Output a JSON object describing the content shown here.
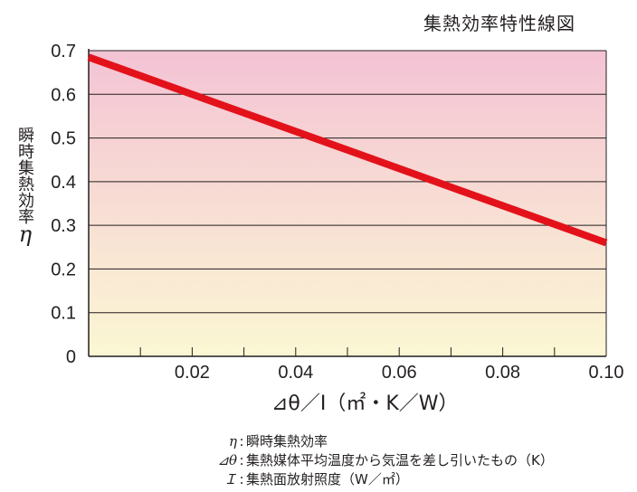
{
  "chart_data": {
    "type": "line",
    "title": "集熱効率特性線図",
    "xlabel": "⊿θ／I（㎡・K／W）",
    "ylabel_chars": "瞬時集熱効率",
    "ylabel_symbol": "η",
    "xlim": [
      0,
      0.1
    ],
    "ylim": [
      0,
      0.7
    ],
    "x_ticks": [
      "0.02",
      "0.04",
      "0.06",
      "0.08",
      "0.10"
    ],
    "y_ticks": [
      "0",
      "0.1",
      "0.2",
      "0.3",
      "0.4",
      "0.5",
      "0.6",
      "0.7"
    ],
    "grid": true,
    "series": [
      {
        "x": [
          0,
          0.1
        ],
        "y": [
          0.685,
          0.26
        ],
        "color": "#e3121a"
      }
    ],
    "background_gradient": {
      "top": "#f4c3d5",
      "bottom": "#fbf7d3"
    }
  },
  "legend_notes": [
    {
      "symbol": "η",
      "text": "瞬時集熱効率"
    },
    {
      "symbol": "⊿θ",
      "text": "集熱媒体平均温度から気温を差し引いたもの（K）"
    },
    {
      "symbol": "Ｉ",
      "text": "集熱面放射照度（W／㎡）"
    }
  ]
}
